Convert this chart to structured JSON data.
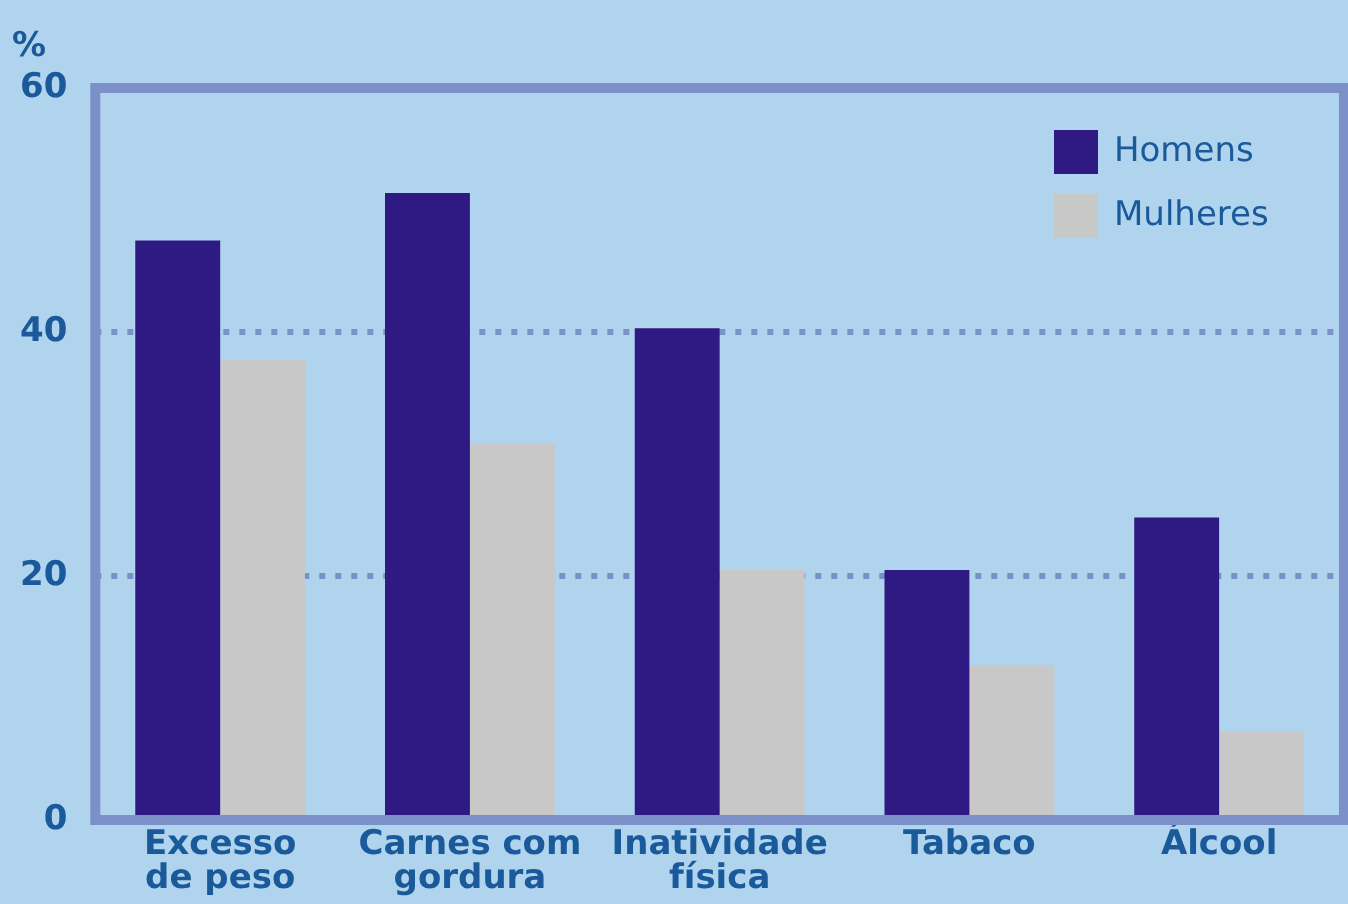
{
  "chart_data": {
    "type": "bar",
    "ylabel": "%",
    "categories": [
      "Excesso de peso",
      "Carnes com gordura",
      "Inatividade física",
      "Tabaco",
      "Álcool"
    ],
    "series": [
      {
        "name": "Homens",
        "color": "#2e1a82",
        "values": [
          47.5,
          51.4,
          40.3,
          20.5,
          24.8
        ]
      },
      {
        "name": "Mulheres",
        "color": "#c8c8c8",
        "values": [
          37.7,
          30.9,
          20.5,
          12.7,
          7.3
        ]
      }
    ],
    "ylim": [
      0,
      60
    ],
    "yticks": [
      0,
      20,
      40,
      60
    ],
    "grid": "y",
    "legend": "top right"
  }
}
